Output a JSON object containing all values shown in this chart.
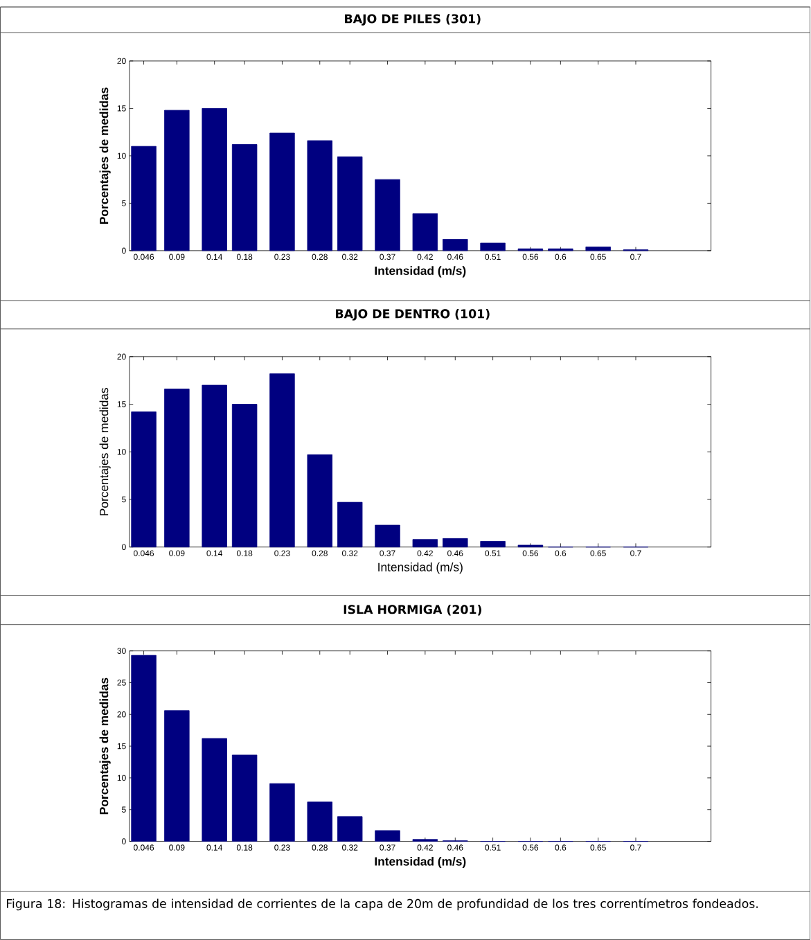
{
  "chart_data": [
    {
      "type": "bar",
      "title": "BAJO DE PILES (301)",
      "xlabel": "Intensidad (m/s)",
      "ylabel": "Porcentajes de medidas",
      "color": "#000080",
      "x": [
        0.046,
        0.09,
        0.14,
        0.18,
        0.23,
        0.28,
        0.32,
        0.37,
        0.42,
        0.46,
        0.51,
        0.56,
        0.6,
        0.65,
        0.7
      ],
      "values": [
        11,
        14.8,
        15.0,
        11.2,
        12.4,
        11.6,
        9.9,
        7.5,
        3.9,
        1.2,
        0.8,
        0.2,
        0.2,
        0.4,
        0.1
      ],
      "xlim": [
        0.027,
        0.8
      ],
      "ylim": [
        0,
        20
      ],
      "xticks": [
        0.046,
        0.09,
        0.14,
        0.18,
        0.23,
        0.28,
        0.32,
        0.37,
        0.42,
        0.46,
        0.51,
        0.56,
        0.6,
        0.65,
        0.7
      ],
      "yticks": [
        0,
        5,
        10,
        15,
        20
      ]
    },
    {
      "type": "bar",
      "title": "BAJO DE DENTRO (101)",
      "xlabel": "Intensidad (m/s)",
      "ylabel": "Porcentajes de medidas",
      "color": "#000080",
      "x": [
        0.046,
        0.09,
        0.14,
        0.18,
        0.23,
        0.28,
        0.32,
        0.37,
        0.42,
        0.46,
        0.51,
        0.56,
        0.6,
        0.65,
        0.7
      ],
      "values": [
        14.2,
        16.6,
        17.0,
        15.0,
        18.2,
        9.7,
        4.7,
        2.3,
        0.8,
        0.9,
        0.6,
        0.2,
        0,
        0,
        0
      ],
      "xlim": [
        0.027,
        0.8
      ],
      "ylim": [
        0,
        20
      ],
      "xticks": [
        0.046,
        0.09,
        0.14,
        0.18,
        0.23,
        0.28,
        0.32,
        0.37,
        0.42,
        0.46,
        0.51,
        0.56,
        0.6,
        0.65,
        0.7
      ],
      "yticks": [
        0,
        5,
        10,
        15,
        20
      ]
    },
    {
      "type": "bar",
      "title": "ISLA HORMIGA (201)",
      "xlabel": "Intensidad (m/s)",
      "ylabel": "Porcentajes de medidas",
      "color": "#000080",
      "x": [
        0.046,
        0.09,
        0.14,
        0.18,
        0.23,
        0.28,
        0.32,
        0.37,
        0.42,
        0.46,
        0.51,
        0.56,
        0.6,
        0.65,
        0.7
      ],
      "values": [
        29.3,
        20.6,
        16.2,
        13.6,
        9.1,
        6.2,
        3.9,
        1.7,
        0.3,
        0.1,
        0,
        0,
        0,
        0,
        0
      ],
      "xlim": [
        0.027,
        0.8
      ],
      "ylim": [
        0,
        30
      ],
      "xticks": [
        0.046,
        0.09,
        0.14,
        0.18,
        0.23,
        0.28,
        0.32,
        0.37,
        0.42,
        0.46,
        0.51,
        0.56,
        0.6,
        0.65,
        0.7
      ],
      "yticks": [
        0,
        5,
        10,
        15,
        20,
        25,
        30
      ],
      "annotations": [
        "Figura 18: Histogramas de intensidad de corrientes  de la capa de 20m de profundidad de los tres correntímetros fondeados."
      ]
    }
  ]
}
